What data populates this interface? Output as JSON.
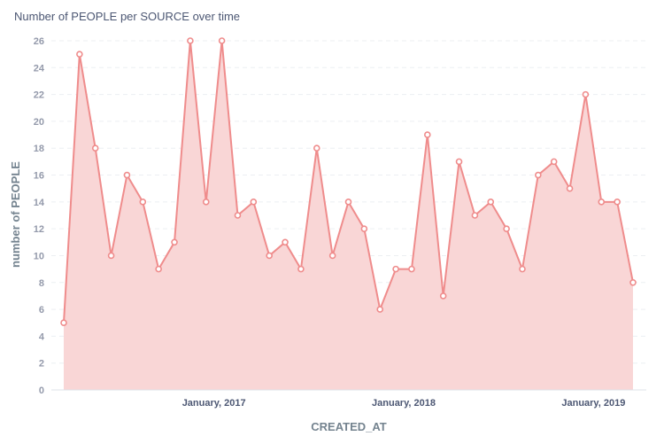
{
  "chart_data": {
    "type": "area",
    "title": "Number of PEOPLE per SOURCE over time",
    "xlabel": "CREATED_AT",
    "ylabel": "number of PEOPLE",
    "ylim": [
      0,
      26
    ],
    "y_ticks": [
      0,
      2,
      4,
      6,
      8,
      10,
      12,
      14,
      16,
      18,
      20,
      22,
      24,
      26
    ],
    "x_tick_labels": [
      {
        "label": "January, 2017",
        "at_index": 9.5
      },
      {
        "label": "January, 2018",
        "at_index": 21.5
      },
      {
        "label": "January, 2019",
        "at_index": 33.5
      }
    ],
    "grid": true,
    "legend": "none",
    "series": [
      {
        "color": "#ef8c8c",
        "fill": "#f9d6d6",
        "values": [
          5,
          25,
          18,
          10,
          16,
          14,
          9,
          11,
          26,
          14,
          26,
          13,
          14,
          10,
          11,
          9,
          18,
          10,
          14,
          12,
          6,
          9,
          9,
          19,
          7,
          17,
          13,
          14,
          12,
          9,
          16,
          17,
          15,
          22,
          14,
          14,
          8
        ]
      }
    ]
  }
}
